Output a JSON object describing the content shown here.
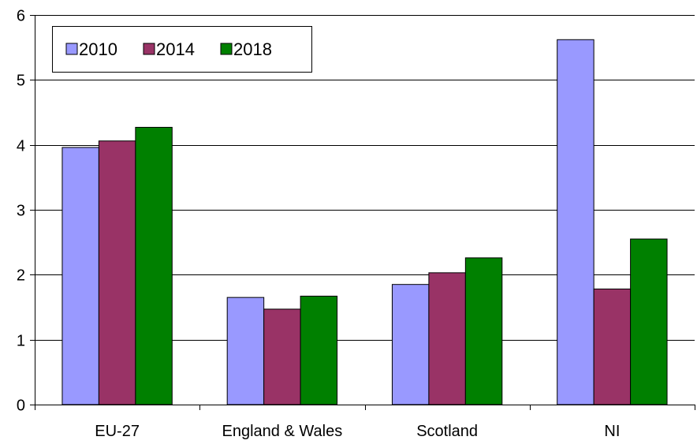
{
  "chart_data": {
    "type": "bar",
    "categories": [
      "EU-27",
      "England & Wales",
      "Scotland",
      "NI"
    ],
    "series": [
      {
        "name": "2010",
        "color": "#9999ff",
        "values": [
          3.96,
          1.65,
          1.85,
          5.62
        ]
      },
      {
        "name": "2014",
        "color": "#993366",
        "values": [
          4.06,
          1.47,
          2.03,
          1.78
        ]
      },
      {
        "name": "2018",
        "color": "#008000",
        "values": [
          4.27,
          1.67,
          2.26,
          2.55
        ]
      }
    ],
    "yticks": [
      "0",
      "1",
      "2",
      "3",
      "4",
      "5",
      "6"
    ],
    "ylim": [
      0,
      6
    ],
    "grid": true,
    "legend_position": "top-left"
  }
}
